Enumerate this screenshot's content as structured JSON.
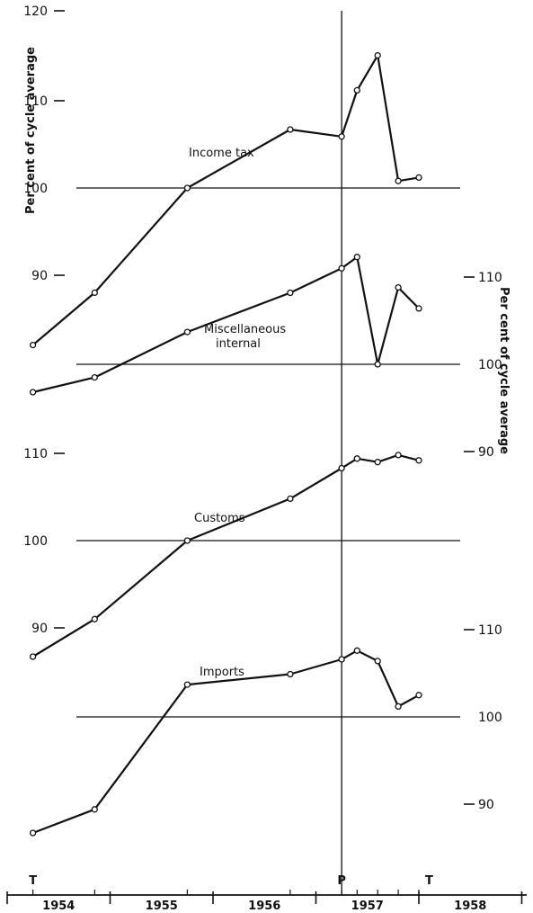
{
  "chart_data": {
    "type": "line",
    "title": "",
    "x_axis": {
      "year_labels": [
        "1954",
        "1955",
        "1956",
        "1957",
        "1958"
      ],
      "phase_markers": [
        {
          "label": "T",
          "x": 1954.25
        },
        {
          "label": "P",
          "x": 1957.25
        },
        {
          "label": "T",
          "x": 1958.1
        }
      ]
    },
    "left_axis": {
      "label": "Per cent of cycle average",
      "ticks_upper": [
        "120",
        "110",
        "100",
        "90"
      ],
      "ticks_lower": [
        "110",
        "100",
        "90"
      ]
    },
    "right_axis": {
      "label": "Per cent of cycle average",
      "ticks_upper": [
        "110",
        "100",
        "90"
      ],
      "ticks_lower": [
        "110",
        "100",
        "90"
      ]
    },
    "series": [
      {
        "name": "Income tax",
        "axis": "left-upper",
        "points": [
          [
            1954.25,
            82
          ],
          [
            1954.85,
            88
          ],
          [
            1955.75,
            100
          ],
          [
            1956.75,
            106.7
          ],
          [
            1957.25,
            105.9
          ],
          [
            1957.4,
            111.2
          ],
          [
            1957.6,
            115.2
          ],
          [
            1957.8,
            100.8
          ],
          [
            1958.0,
            101.2
          ]
        ]
      },
      {
        "name": "Miscellaneous internal",
        "axis": "right-upper",
        "points": [
          [
            1954.25,
            96.8
          ],
          [
            1954.85,
            98.5
          ],
          [
            1955.75,
            103.7
          ],
          [
            1956.75,
            108.2
          ],
          [
            1957.25,
            111
          ],
          [
            1957.4,
            112.3
          ],
          [
            1957.6,
            100
          ],
          [
            1957.8,
            108.8
          ],
          [
            1958.0,
            106.4
          ]
        ]
      },
      {
        "name": "Customs",
        "axis": "left-lower",
        "points": [
          [
            1954.25,
            86.7
          ],
          [
            1954.85,
            91
          ],
          [
            1955.75,
            100
          ],
          [
            1956.75,
            104.8
          ],
          [
            1957.25,
            108.3
          ],
          [
            1957.4,
            109.4
          ],
          [
            1957.6,
            109
          ],
          [
            1957.8,
            109.8
          ],
          [
            1958.0,
            109.2
          ]
        ]
      },
      {
        "name": "Imports",
        "axis": "right-lower",
        "points": [
          [
            1954.25,
            86.7
          ],
          [
            1954.85,
            89.4
          ],
          [
            1955.75,
            103.7
          ],
          [
            1956.75,
            104.9
          ],
          [
            1957.25,
            106.6
          ],
          [
            1957.4,
            107.6
          ],
          [
            1957.6,
            106.4
          ],
          [
            1957.8,
            101.2
          ],
          [
            1958.0,
            102.5
          ]
        ]
      }
    ],
    "reference_lines": [
      "100",
      "100",
      "100",
      "100"
    ],
    "grid": false,
    "legend": "none"
  }
}
